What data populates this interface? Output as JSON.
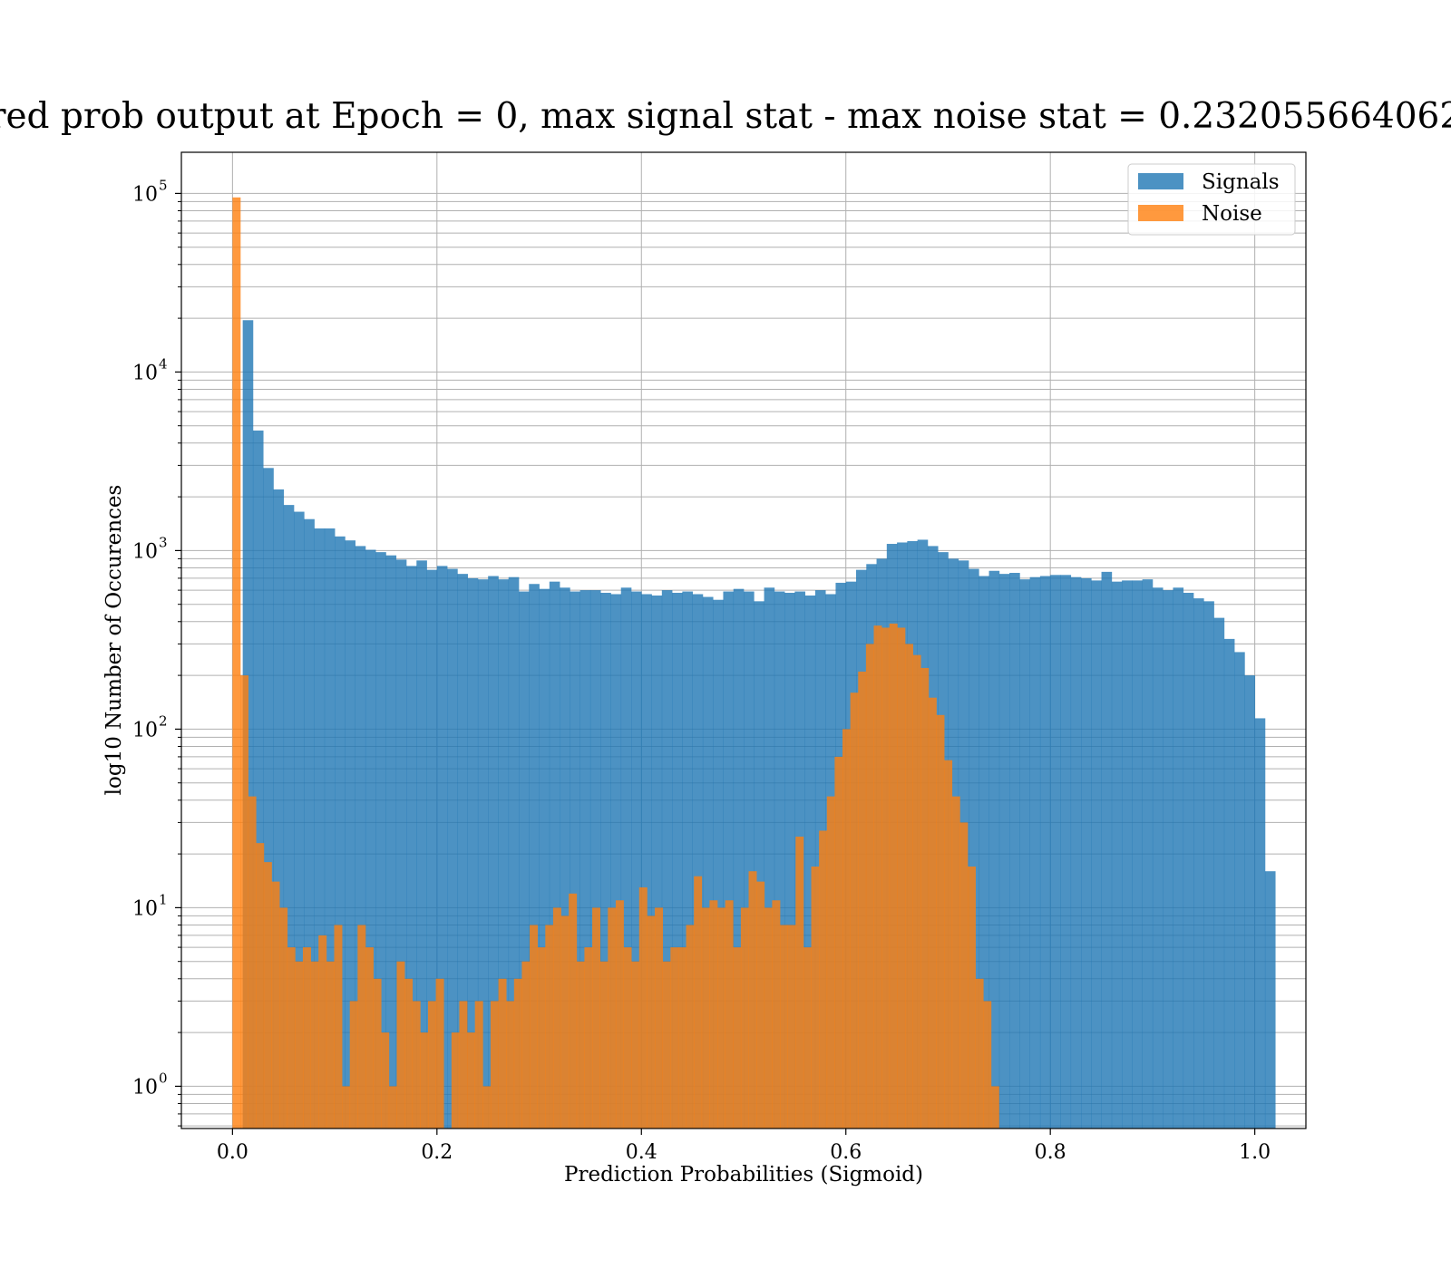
{
  "chart_data": {
    "type": "bar",
    "title": "red prob output at Epoch = 0, max signal stat - max noise stat = 0.232055664062",
    "xlabel": "Prediction Probabilities (Sigmoid)",
    "ylabel": "log10 Number of Occurences",
    "xlim": [
      -0.05,
      1.05
    ],
    "ylim": [
      0.58,
      170000
    ],
    "yscale": "log",
    "grid": true,
    "legend_position": "top-right",
    "x_ticks": [
      {
        "value": 0.0,
        "label": "0.0"
      },
      {
        "value": 0.2,
        "label": "0.2"
      },
      {
        "value": 0.4,
        "label": "0.4"
      },
      {
        "value": 0.6,
        "label": "0.6"
      },
      {
        "value": 0.8,
        "label": "0.8"
      },
      {
        "value": 1.0,
        "label": "1.0"
      }
    ],
    "y_ticks": [
      {
        "value": 1,
        "base": "10",
        "exp": "0"
      },
      {
        "value": 10,
        "base": "10",
        "exp": "1"
      },
      {
        "value": 100,
        "base": "10",
        "exp": "2"
      },
      {
        "value": 1000,
        "base": "10",
        "exp": "3"
      },
      {
        "value": 10000,
        "base": "10",
        "exp": "4"
      },
      {
        "value": 100000,
        "base": "10",
        "exp": "5"
      }
    ],
    "series": [
      {
        "name": "Signals",
        "color": "#1f77b4",
        "bin_start": 0.0,
        "bin_width": 0.01,
        "values": [
          0,
          19500,
          4700,
          2900,
          2200,
          1800,
          1650,
          1500,
          1330,
          1330,
          1200,
          1140,
          1060,
          1010,
          980,
          940,
          890,
          820,
          880,
          780,
          820,
          790,
          740,
          700,
          690,
          720,
          690,
          710,
          590,
          650,
          610,
          670,
          620,
          590,
          600,
          600,
          580,
          570,
          620,
          590,
          570,
          560,
          600,
          580,
          590,
          570,
          550,
          530,
          590,
          610,
          590,
          520,
          620,
          590,
          580,
          590,
          560,
          600,
          570,
          660,
          670,
          780,
          840,
          900,
          1090,
          1110,
          1130,
          1150,
          1060,
          980,
          900,
          880,
          790,
          720,
          770,
          740,
          750,
          690,
          710,
          720,
          730,
          730,
          710,
          700,
          680,
          760,
          670,
          680,
          680,
          690,
          620,
          600,
          620,
          580,
          540,
          520,
          420,
          320,
          270,
          200,
          115,
          16
        ]
      },
      {
        "name": "Noise",
        "color": "#ff7f0e",
        "bin_start": 0.0,
        "bin_width": 0.00765,
        "values": [
          95000,
          200,
          42,
          23,
          18,
          14,
          10,
          6,
          5,
          6,
          5,
          7,
          5,
          8,
          1,
          3,
          8,
          6,
          4,
          2,
          1,
          5,
          4,
          3,
          2,
          3,
          4,
          0.58,
          2,
          3,
          2,
          3,
          1,
          3,
          4,
          3,
          4,
          5,
          8,
          6,
          8,
          10,
          9,
          12,
          5,
          6,
          10,
          5,
          10,
          11,
          6,
          5,
          13,
          9,
          10,
          5,
          6,
          6,
          8,
          15,
          10,
          11,
          10,
          11,
          6,
          10,
          16,
          14,
          10,
          11,
          8,
          8,
          25,
          6,
          17,
          27,
          42,
          70,
          100,
          160,
          210,
          300,
          380,
          370,
          390,
          370,
          300,
          260,
          220,
          150,
          120,
          67,
          42,
          30,
          17,
          4,
          3,
          1
        ]
      }
    ]
  }
}
